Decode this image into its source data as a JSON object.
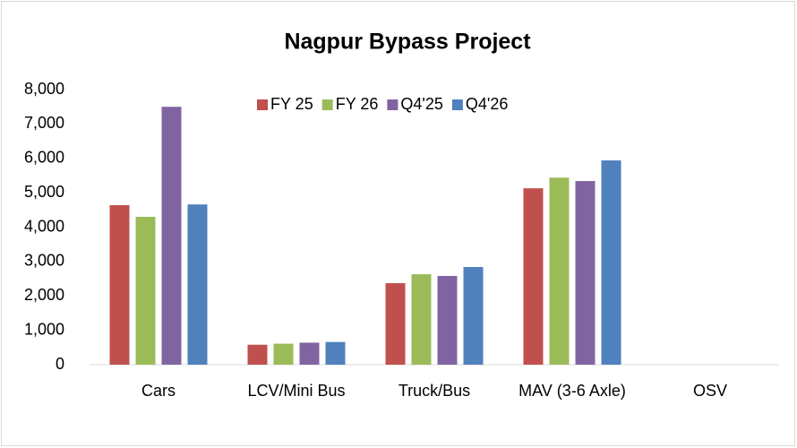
{
  "chart_data": {
    "type": "bar",
    "title": "Nagpur Bypass Project",
    "categories": [
      "Cars",
      "LCV/Mini Bus",
      "Truck/Bus",
      "MAV (3-6 Axle)",
      "OSV"
    ],
    "series": [
      {
        "name": "FY 25",
        "color": "#c0504d",
        "values": [
          4640,
          580,
          2370,
          5130,
          0
        ]
      },
      {
        "name": "FY 26",
        "color": "#9bbb59",
        "values": [
          4300,
          610,
          2630,
          5440,
          0
        ]
      },
      {
        "name": "Q4'25",
        "color": "#8064a2",
        "values": [
          7500,
          640,
          2580,
          5340,
          0
        ]
      },
      {
        "name": "Q4'26",
        "color": "#4f81bd",
        "values": [
          4660,
          660,
          2840,
          5940,
          0
        ]
      }
    ],
    "ylim": [
      0,
      8000
    ],
    "yticks": [
      0,
      {
        "value": 1000,
        "label": "1,000"
      },
      {
        "value": 2000,
        "label": "2,000"
      },
      {
        "value": 3000,
        "label": "3,000"
      },
      {
        "value": 4000,
        "label": "4,000"
      },
      {
        "value": 5000,
        "label": "5,000"
      },
      {
        "value": 6000,
        "label": "6,000"
      },
      {
        "value": 7000,
        "label": "7,000"
      },
      {
        "value": 8000,
        "label": "8,000"
      }
    ],
    "grid": false,
    "legend": "top"
  }
}
